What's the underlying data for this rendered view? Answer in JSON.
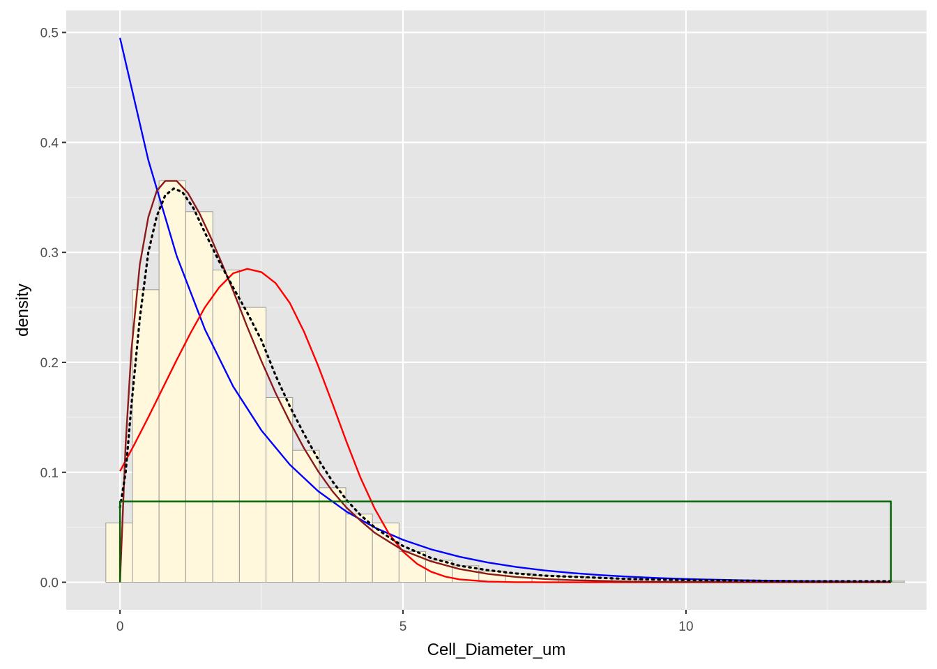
{
  "chart_data": {
    "type": "histogram",
    "title": "",
    "xlabel": "Cell_Diameter_um",
    "ylabel": "density",
    "xlim": [
      -0.95,
      14.25
    ],
    "ylim": [
      -0.025,
      0.52
    ],
    "x_ticks": [
      0,
      5,
      10
    ],
    "x_tick_labels": [
      "0",
      "5",
      "10"
    ],
    "y_ticks": [
      0.0,
      0.1,
      0.2,
      0.3,
      0.4,
      0.5
    ],
    "y_tick_labels": [
      "0.0",
      "0.1",
      "0.2",
      "0.3",
      "0.4",
      "0.5"
    ],
    "grid": true,
    "legend": "none",
    "panel_background": "#e5e5e5",
    "histogram": {
      "fill": "#fff8dc",
      "outline": "#999999",
      "bins": [
        {
          "x0": -0.25,
          "x1": 0.22,
          "density": 0.054
        },
        {
          "x0": 0.22,
          "x1": 0.69,
          "density": 0.266
        },
        {
          "x0": 0.69,
          "x1": 1.16,
          "density": 0.365
        },
        {
          "x0": 1.16,
          "x1": 1.64,
          "density": 0.337
        },
        {
          "x0": 1.64,
          "x1": 2.11,
          "density": 0.284
        },
        {
          "x0": 2.11,
          "x1": 2.58,
          "density": 0.25
        },
        {
          "x0": 2.58,
          "x1": 3.05,
          "density": 0.168
        },
        {
          "x0": 3.05,
          "x1": 3.52,
          "density": 0.12
        },
        {
          "x0": 3.52,
          "x1": 3.99,
          "density": 0.086
        },
        {
          "x0": 3.99,
          "x1": 4.46,
          "density": 0.062
        },
        {
          "x0": 4.46,
          "x1": 4.93,
          "density": 0.054
        },
        {
          "x0": 4.93,
          "x1": 5.4,
          "density": 0.028
        },
        {
          "x0": 5.4,
          "x1": 5.87,
          "density": 0.02
        },
        {
          "x0": 5.87,
          "x1": 6.34,
          "density": 0.015
        },
        {
          "x0": 6.34,
          "x1": 6.81,
          "density": 0.01
        },
        {
          "x0": 6.81,
          "x1": 7.28,
          "density": 0.008
        },
        {
          "x0": 7.28,
          "x1": 7.75,
          "density": 0.006
        },
        {
          "x0": 7.75,
          "x1": 8.22,
          "density": 0.005
        },
        {
          "x0": 8.22,
          "x1": 8.69,
          "density": 0.004
        },
        {
          "x0": 8.69,
          "x1": 9.16,
          "density": 0.003
        },
        {
          "x0": 9.16,
          "x1": 9.63,
          "density": 0.003
        },
        {
          "x0": 9.63,
          "x1": 10.1,
          "density": 0.002
        },
        {
          "x0": 10.1,
          "x1": 10.57,
          "density": 0.002
        },
        {
          "x0": 10.57,
          "x1": 11.04,
          "density": 0.002
        },
        {
          "x0": 11.04,
          "x1": 11.51,
          "density": 0.001
        },
        {
          "x0": 11.51,
          "x1": 11.98,
          "density": 0.001
        },
        {
          "x0": 11.98,
          "x1": 12.45,
          "density": 0.001
        },
        {
          "x0": 12.45,
          "x1": 12.92,
          "density": 0.001
        },
        {
          "x0": 12.92,
          "x1": 13.39,
          "density": 0.001
        },
        {
          "x0": 13.39,
          "x1": 13.86,
          "density": 0.001
        }
      ]
    },
    "series": [
      {
        "color": "#0000ff",
        "style": "solid",
        "x": [
          0,
          0.5,
          1,
          1.5,
          2,
          2.5,
          3,
          3.5,
          4,
          4.5,
          5,
          5.5,
          6,
          6.5,
          7,
          7.5,
          8,
          8.5,
          9,
          9.5,
          10,
          10.5,
          11,
          11.5,
          12,
          12.5,
          13,
          13.62
        ],
        "values": [
          0.495,
          0.384,
          0.297,
          0.23,
          0.178,
          0.138,
          0.107,
          0.0829,
          0.0643,
          0.0498,
          0.0386,
          0.0299,
          0.0232,
          0.018,
          0.0139,
          0.0108,
          0.00837,
          0.00649,
          0.00503,
          0.0039,
          0.00302,
          0.00234,
          0.00181,
          0.0014,
          0.00109,
          0.00084,
          0.00065,
          0.00047
        ]
      },
      {
        "color": "#ff0000",
        "style": "solid",
        "x": [
          0,
          0.25,
          0.5,
          0.75,
          1,
          1.25,
          1.5,
          1.75,
          2,
          2.25,
          2.5,
          2.75,
          3,
          3.25,
          3.5,
          3.75,
          4,
          4.25,
          4.5,
          4.75,
          5,
          5.25,
          5.5,
          5.75,
          6,
          6.5,
          7,
          7.5,
          8,
          9,
          10,
          11,
          12,
          13,
          13.62
        ],
        "values": [
          0.101,
          0.125,
          0.15,
          0.176,
          0.202,
          0.227,
          0.25,
          0.268,
          0.281,
          0.285,
          0.282,
          0.272,
          0.254,
          0.228,
          0.197,
          0.163,
          0.128,
          0.095,
          0.067,
          0.0443,
          0.0279,
          0.0167,
          0.0095,
          0.0051,
          0.0026,
          0.0006,
          0.0001,
          0,
          0,
          0,
          0,
          0,
          0,
          0,
          0
        ]
      },
      {
        "color": "#8b1a1a",
        "style": "solid",
        "x": [
          0,
          0.1,
          0.2,
          0.35,
          0.5,
          0.65,
          0.8,
          1,
          1.2,
          1.4,
          1.6,
          1.8,
          2,
          2.25,
          2.5,
          2.75,
          3,
          3.25,
          3.5,
          3.75,
          4,
          4.25,
          4.5,
          4.75,
          5,
          5.5,
          6,
          6.5,
          7,
          7.5,
          8,
          9,
          10,
          11,
          12,
          13,
          13.62
        ],
        "values": [
          0,
          0.126,
          0.21,
          0.289,
          0.332,
          0.356,
          0.365,
          0.365,
          0.354,
          0.336,
          0.314,
          0.29,
          0.265,
          0.232,
          0.201,
          0.172,
          0.146,
          0.122,
          0.101,
          0.083,
          0.068,
          0.056,
          0.045,
          0.037,
          0.029,
          0.019,
          0.012,
          0.0076,
          0.0048,
          0.003,
          0.0019,
          0.0007,
          0.0003,
          0.0001,
          0,
          0,
          0
        ]
      },
      {
        "color": "#000000",
        "style": "dotted",
        "x": [
          0,
          0.1,
          0.2,
          0.35,
          0.5,
          0.65,
          0.8,
          0.95,
          1.1,
          1.3,
          1.5,
          1.75,
          2,
          2.25,
          2.5,
          2.75,
          3,
          3.25,
          3.5,
          3.75,
          4,
          4.25,
          4.5,
          4.75,
          5,
          5.5,
          6,
          6.5,
          7,
          7.5,
          8,
          8.5,
          9,
          10,
          11,
          12,
          13,
          13.62
        ],
        "values": [
          0.068,
          0.1,
          0.16,
          0.24,
          0.3,
          0.333,
          0.352,
          0.358,
          0.355,
          0.34,
          0.318,
          0.292,
          0.268,
          0.245,
          0.22,
          0.188,
          0.16,
          0.135,
          0.112,
          0.092,
          0.075,
          0.061,
          0.05,
          0.041,
          0.033,
          0.022,
          0.015,
          0.011,
          0.008,
          0.006,
          0.005,
          0.004,
          0.003,
          0.002,
          0.0015,
          0.001,
          0.001,
          0.001
        ]
      },
      {
        "color": "#006400",
        "style": "solid",
        "x": [
          0,
          0,
          13.62,
          13.62
        ],
        "values": [
          0,
          0.0735,
          0.0735,
          0
        ]
      }
    ]
  }
}
